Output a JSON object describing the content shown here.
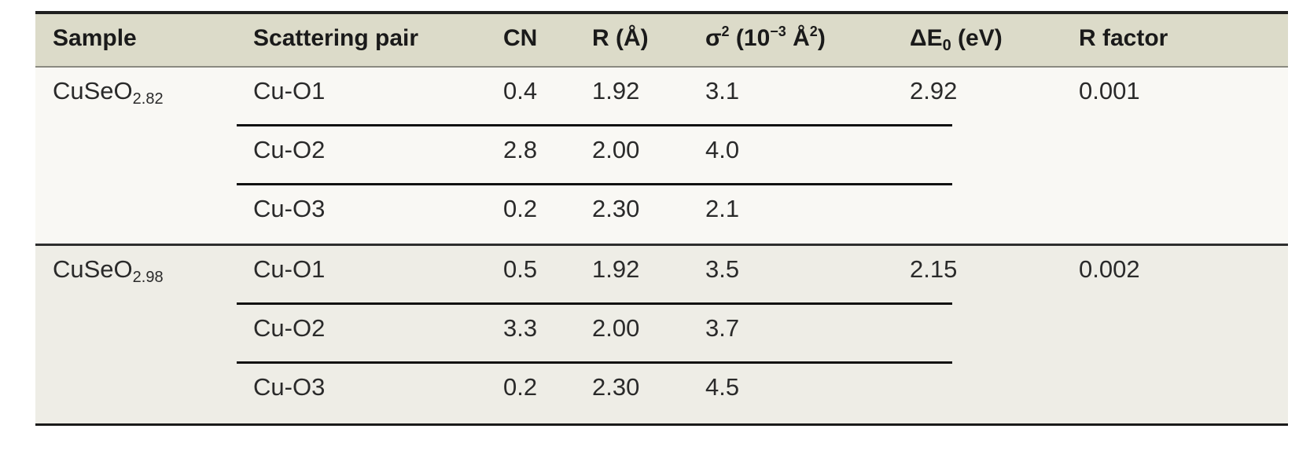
{
  "headers": {
    "sample": "Sample",
    "pair": "Scattering pair",
    "cn": "CN",
    "r": "R (Å)",
    "sigma_main": "σ",
    "sigma_sup": "2",
    "sigma_unit_a": "(10",
    "sigma_unit_exp": "−3",
    "sigma_unit_b": "Å",
    "sigma_unit_sup": "2",
    "sigma_unit_c": ")",
    "de_main": "ΔE",
    "de_sub": "0",
    "de_unit": "(eV)",
    "rfactor": "R factor"
  },
  "groups": [
    {
      "sample_base": "CuSeO",
      "sample_sub": "2.82",
      "delta_e": "2.92",
      "r_factor": "0.001",
      "rows": [
        {
          "pair": "Cu-O1",
          "cn": "0.4",
          "r": "1.92",
          "sigma2": "3.1"
        },
        {
          "pair": "Cu-O2",
          "cn": "2.8",
          "r": "2.00",
          "sigma2": "4.0"
        },
        {
          "pair": "Cu-O3",
          "cn": "0.2",
          "r": "2.30",
          "sigma2": "2.1"
        }
      ]
    },
    {
      "sample_base": "CuSeO",
      "sample_sub": "2.98",
      "delta_e": "2.15",
      "r_factor": "0.002",
      "rows": [
        {
          "pair": "Cu-O1",
          "cn": "0.5",
          "r": "1.92",
          "sigma2": "3.5"
        },
        {
          "pair": "Cu-O2",
          "cn": "3.3",
          "r": "2.00",
          "sigma2": "3.7"
        },
        {
          "pair": "Cu-O3",
          "cn": "0.2",
          "r": "2.30",
          "sigma2": "4.5"
        }
      ]
    }
  ],
  "colors": {
    "header_bg": "#dcdbc9",
    "group1_bg": "#f9f8f4",
    "group2_bg": "#eeede6"
  }
}
